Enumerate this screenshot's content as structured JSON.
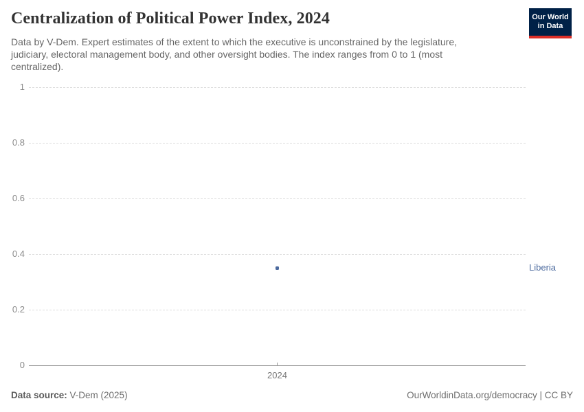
{
  "header": {
    "title": "Centralization of Political Power Index, 2024",
    "subtitle_lines": [
      "Data by V-Dem. Expert estimates of the extent to which the executive is unconstrained by the legislature,",
      "judiciary, electoral management body, and other oversight bodies. The index ranges from 0 to 1 (most",
      "centralized)."
    ],
    "logo": {
      "line1": "Our World",
      "line2": "in Data",
      "bg_color": "#002147",
      "accent_color": "#dc2f28"
    }
  },
  "chart_data": {
    "type": "scatter",
    "title": "Centralization of Political Power Index, 2024",
    "xlabel": "",
    "ylabel": "",
    "xlim": [
      2023.5,
      2024.5
    ],
    "ylim": [
      0,
      1
    ],
    "grid": true,
    "yticks": [
      {
        "value": 0,
        "label": "0"
      },
      {
        "value": 0.2,
        "label": "0.2"
      },
      {
        "value": 0.4,
        "label": "0.4"
      },
      {
        "value": 0.6,
        "label": "0.6"
      },
      {
        "value": 0.8,
        "label": "0.8"
      },
      {
        "value": 1,
        "label": "1"
      }
    ],
    "xticks": [
      {
        "value": 2024,
        "label": "2024"
      }
    ],
    "series": [
      {
        "name": "Liberia",
        "color": "#4c6a9e",
        "points": [
          {
            "x": 2024,
            "y": 0.35
          }
        ]
      }
    ],
    "legend_position": "entity-label-right"
  },
  "footer": {
    "data_source_label": "Data source:",
    "data_source_value": " V-Dem (2025)",
    "attribution": "OurWorldinData.org/democracy | CC BY"
  },
  "colors": {
    "title": "#333333",
    "subtitle": "#666666",
    "axis_label": "#8a8a8a",
    "gridline": "#dddddd",
    "axis_line": "#999999",
    "accent_blue": "#4c6a9e",
    "logo_bg": "#002147",
    "logo_accent": "#dc2f28"
  }
}
